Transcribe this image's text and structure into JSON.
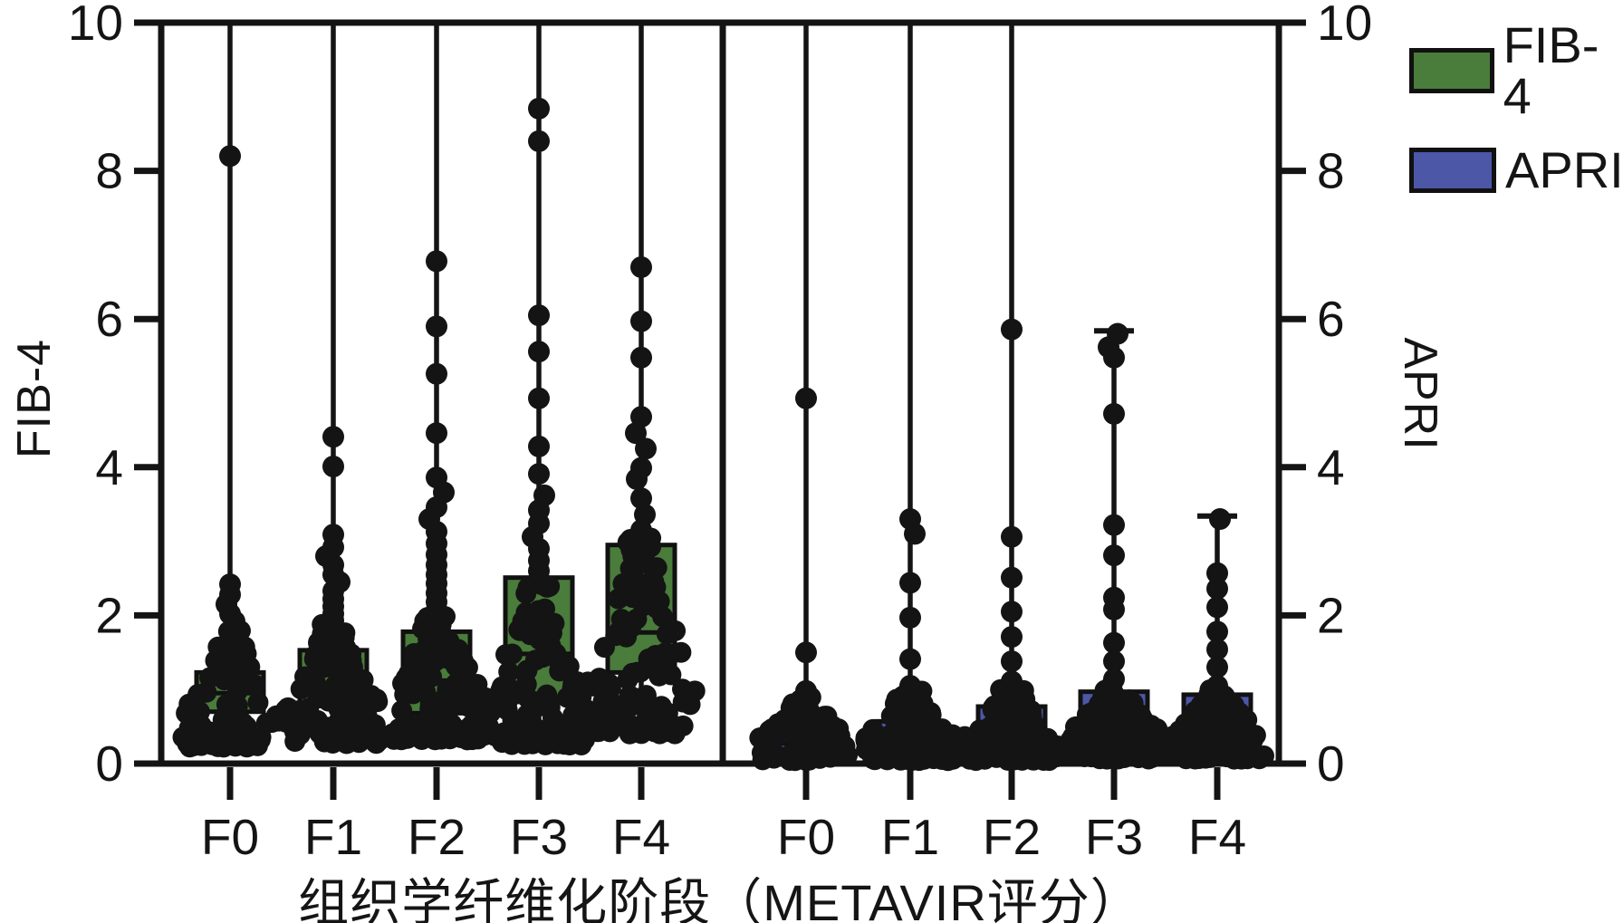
{
  "figure": {
    "x_axis_title": "组织学纤维化阶段（METAVIR评分）",
    "left_axis_title": "FIB-4",
    "right_axis_title": "APRI"
  },
  "chart_data": {
    "type": "box-scatter",
    "description": "Box plots with overlaid jittered data points of FIB-4 (left panel, green boxes) and APRI (right panel, blue boxes) scores by histological fibrosis stage (METAVIR score). Whiskers without caps extend beyond the axis top (clipped at 10).",
    "categories": [
      "F0",
      "F1",
      "F2",
      "F3",
      "F4"
    ],
    "xlabel": "组织学纤维化阶段（METAVIR评分）",
    "ylabel_left": "FIB-4",
    "ylabel_right": "APRI",
    "ylim": [
      0,
      10
    ],
    "y_ticks": [
      0,
      2,
      4,
      6,
      8,
      10
    ],
    "grid": false,
    "legend_position": "top-right",
    "legend": [
      {
        "label": "FIB-4",
        "color": "#4a7c3c"
      },
      {
        "label": "APRI",
        "color": "#4c57a8"
      }
    ],
    "point_color": "#141414",
    "axis_color": "#141414",
    "panels": [
      {
        "name": "FIB-4",
        "color": "#4a7c3c",
        "groups": [
          {
            "label": "F0",
            "box": {
              "q1": 0.7,
              "median": 0.95,
              "q3": 1.23
            },
            "whisker_low": 0.21,
            "whisker_high": null,
            "outliers": [
              {
                "v": 8.2
              },
              {
                "v": 2.42
              },
              {
                "v": 2.28
              },
              {
                "v": 2.15,
                "dx": -4
              },
              {
                "v": 2.02
              },
              {
                "v": 1.92,
                "dx": 5
              }
            ],
            "cluster": {
              "min": 0.22,
              "max": 1.8,
              "count": 85,
              "spread": 56
            }
          },
          {
            "label": "F1",
            "box": {
              "q1": 0.78,
              "median": 1.06,
              "q3": 1.53
            },
            "whisker_low": 0.26,
            "whisker_high": null,
            "outliers": [
              {
                "v": 4.41
              },
              {
                "v": 4.01
              },
              {
                "v": 3.09
              },
              {
                "v": 2.92
              },
              {
                "v": 2.8,
                "dx": -8
              },
              {
                "v": 2.68
              },
              {
                "v": 2.55
              },
              {
                "v": 2.45,
                "dx": 7
              },
              {
                "v": 2.33
              },
              {
                "v": 2.22
              },
              {
                "v": 2.12
              },
              {
                "v": 2.02
              },
              {
                "v": 1.93
              }
            ],
            "cluster": {
              "min": 0.27,
              "max": 1.9,
              "count": 120,
              "spread": 58
            }
          },
          {
            "label": "F2",
            "box": {
              "q1": 0.68,
              "median": 1.12,
              "q3": 1.78
            },
            "whisker_low": 0.31,
            "whisker_high": null,
            "outliers": [
              {
                "v": 6.78
              },
              {
                "v": 5.9
              },
              {
                "v": 5.26
              },
              {
                "v": 4.46
              },
              {
                "v": 3.86
              },
              {
                "v": 3.66,
                "dx": 8
              },
              {
                "v": 3.46
              },
              {
                "v": 3.3,
                "dx": -8
              },
              {
                "v": 3.13
              },
              {
                "v": 2.97
              },
              {
                "v": 2.82
              },
              {
                "v": 2.68
              },
              {
                "v": 2.55
              },
              {
                "v": 2.43
              },
              {
                "v": 2.3
              },
              {
                "v": 2.18
              },
              {
                "v": 2.07
              }
            ],
            "cluster": {
              "min": 0.32,
              "max": 2.0,
              "count": 140,
              "spread": 62
            }
          },
          {
            "label": "F3",
            "box": {
              "q1": 0.89,
              "median": 1.48,
              "q3": 2.51
            },
            "whisker_low": 0.24,
            "whisker_high": null,
            "outliers": [
              {
                "v": 8.84
              },
              {
                "v": 8.4
              },
              {
                "v": 6.05
              },
              {
                "v": 5.56
              },
              {
                "v": 4.93
              },
              {
                "v": 4.28
              },
              {
                "v": 3.91
              },
              {
                "v": 3.62,
                "dx": 6
              },
              {
                "v": 3.42
              },
              {
                "v": 3.24
              },
              {
                "v": 3.06,
                "dx": -7
              },
              {
                "v": 2.9
              },
              {
                "v": 2.74
              },
              {
                "v": 2.6
              }
            ],
            "cluster": {
              "min": 0.25,
              "max": 2.5,
              "count": 115,
              "spread": 60
            }
          },
          {
            "label": "F4",
            "box": {
              "q1": 1.23,
              "median": 1.77,
              "q3": 2.95
            },
            "whisker_low": 0.38,
            "whisker_high": null,
            "outliers": [
              {
                "v": 6.7
              },
              {
                "v": 5.97
              },
              {
                "v": 5.48
              },
              {
                "v": 4.68
              },
              {
                "v": 4.46,
                "dx": -6
              },
              {
                "v": 4.25,
                "dx": 5
              },
              {
                "v": 3.99
              },
              {
                "v": 3.84,
                "dx": -5
              },
              {
                "v": 3.58
              },
              {
                "v": 3.36,
                "dx": 4
              },
              {
                "v": 3.15
              }
            ],
            "cluster": {
              "min": 0.4,
              "max": 3.05,
              "count": 105,
              "spread": 60
            }
          }
        ]
      },
      {
        "name": "APRI",
        "color": "#4c57a8",
        "groups": [
          {
            "label": "F0",
            "box": {
              "q1": 0.15,
              "median": 0.27,
              "q3": 0.44
            },
            "whisker_low": 0.02,
            "whisker_high": null,
            "outliers": [
              {
                "v": 4.93
              },
              {
                "v": 1.5
              },
              {
                "v": 0.98
              }
            ],
            "cluster": {
              "min": 0.04,
              "max": 0.9,
              "count": 80,
              "spread": 57
            }
          },
          {
            "label": "F1",
            "box": {
              "q1": 0.17,
              "median": 0.3,
              "q3": 0.57
            },
            "whisker_low": 0.02,
            "whisker_high": null,
            "outliers": [
              {
                "v": 3.3
              },
              {
                "v": 3.1,
                "dx": 5
              },
              {
                "v": 2.44
              },
              {
                "v": 1.97
              },
              {
                "v": 1.41
              },
              {
                "v": 1.05
              }
            ],
            "cluster": {
              "min": 0.04,
              "max": 0.98,
              "count": 110,
              "spread": 56
            }
          },
          {
            "label": "F2",
            "box": {
              "q1": 0.18,
              "median": 0.35,
              "q3": 0.77
            },
            "whisker_low": 0.02,
            "whisker_high": null,
            "outliers": [
              {
                "v": 5.86
              },
              {
                "v": 3.06
              },
              {
                "v": 2.51
              },
              {
                "v": 2.05
              },
              {
                "v": 1.71
              },
              {
                "v": 1.38
              },
              {
                "v": 1.11
              }
            ],
            "cluster": {
              "min": 0.04,
              "max": 1.0,
              "count": 110,
              "spread": 57
            }
          },
          {
            "label": "F3",
            "box": {
              "q1": 0.25,
              "median": 0.5,
              "q3": 0.97
            },
            "whisker_low": 0.05,
            "whisker_high": 5.84,
            "outliers": [
              {
                "v": 5.8,
                "dx": 4
              },
              {
                "v": 5.62,
                "dx": -6
              },
              {
                "v": 5.48
              },
              {
                "v": 4.72
              },
              {
                "v": 3.22
              },
              {
                "v": 2.81
              },
              {
                "v": 2.24
              },
              {
                "v": 2.08
              },
              {
                "v": 1.63
              },
              {
                "v": 1.38
              },
              {
                "v": 1.14
              }
            ],
            "cluster": {
              "min": 0.06,
              "max": 1.1,
              "count": 120,
              "spread": 58
            }
          },
          {
            "label": "F4",
            "box": {
              "q1": 0.28,
              "median": 0.52,
              "q3": 0.93
            },
            "whisker_low": 0.05,
            "whisker_high": 3.34,
            "outliers": [
              {
                "v": 3.3,
                "dx": 3
              },
              {
                "v": 2.57
              },
              {
                "v": 2.36
              },
              {
                "v": 2.11
              },
              {
                "v": 1.78
              },
              {
                "v": 1.54
              },
              {
                "v": 1.3
              },
              {
                "v": 1.05
              }
            ],
            "cluster": {
              "min": 0.06,
              "max": 1.0,
              "count": 110,
              "spread": 57
            }
          }
        ]
      }
    ]
  }
}
